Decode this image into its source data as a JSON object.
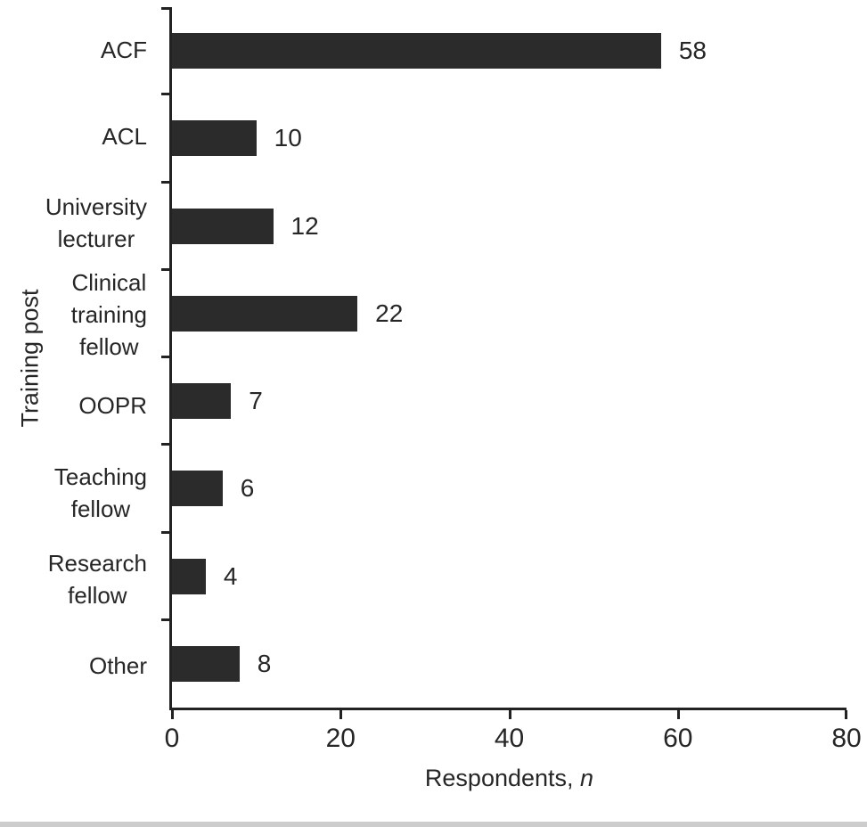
{
  "chart_data": {
    "type": "bar",
    "orientation": "horizontal",
    "title": "",
    "categories": [
      "ACF",
      "ACL",
      "University\nlecturer",
      "Clinical\ntraining\nfellow",
      "OOPR",
      "Teaching\nfellow",
      "Research\nfellow",
      "Other"
    ],
    "values": [
      58,
      10,
      12,
      22,
      7,
      6,
      4,
      8
    ],
    "xlabel": "Respondents, n",
    "xlabel_prefix": "Respondents, ",
    "xlabel_italic": "n",
    "ylabel": "Training post",
    "xlim": [
      0,
      80
    ],
    "xticks": [
      0,
      20,
      40,
      60,
      80
    ],
    "bar_color": "#2b2b2b",
    "grid": false,
    "legend": null,
    "value_labels": true
  }
}
